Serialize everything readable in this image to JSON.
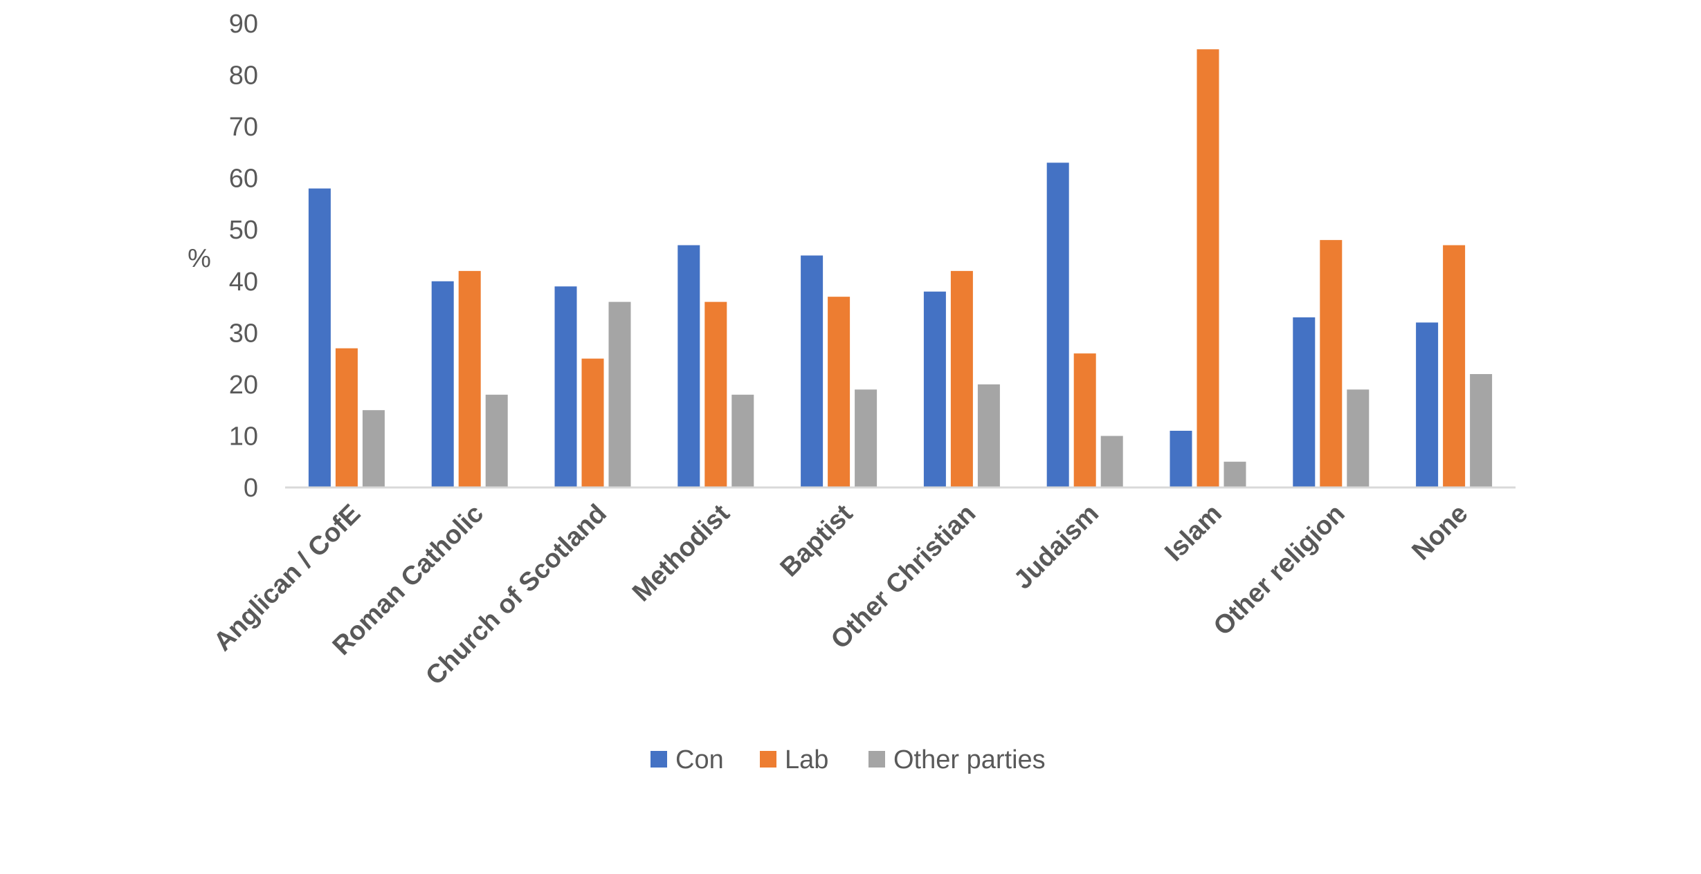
{
  "chart_data": {
    "type": "bar",
    "categories": [
      "Anglican / CofE",
      "Roman Catholic",
      "Church of Scotland",
      "Methodist",
      "Baptist",
      "Other Christian",
      "Judaism",
      "Islam",
      "Other religion",
      "None"
    ],
    "series": [
      {
        "name": "Con",
        "color": "#4472C4",
        "values": [
          58,
          40,
          39,
          47,
          45,
          38,
          63,
          11,
          33,
          32
        ]
      },
      {
        "name": "Lab",
        "color": "#ED7D31",
        "values": [
          27,
          42,
          25,
          36,
          37,
          42,
          26,
          85,
          48,
          47
        ]
      },
      {
        "name": "Other parties",
        "color": "#A5A5A5",
        "values": [
          15,
          18,
          36,
          18,
          19,
          20,
          10,
          5,
          19,
          22
        ]
      }
    ],
    "yticks": [
      "0",
      "10",
      "20",
      "30",
      "40",
      "50",
      "60",
      "70",
      "80",
      "90"
    ],
    "ylabel": "%",
    "xlabel": "",
    "title": "",
    "ylim": [
      0,
      90
    ],
    "grid": false,
    "legend_position": "bottom"
  }
}
